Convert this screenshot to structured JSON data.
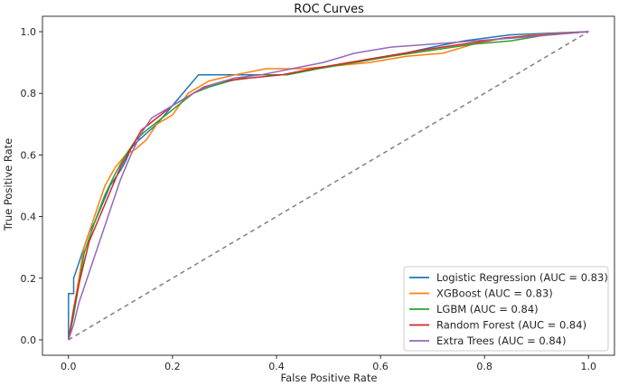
{
  "chart_data": {
    "type": "line",
    "title": "ROC Curves",
    "xlabel": "False Positive Rate",
    "ylabel": "True Positive Rate",
    "xlim": [
      -0.05,
      1.05
    ],
    "ylim": [
      -0.05,
      1.05
    ],
    "x_ticks": [
      "0.0",
      "0.2",
      "0.4",
      "0.6",
      "0.8",
      "1.0"
    ],
    "y_ticks": [
      "0.0",
      "0.2",
      "0.4",
      "0.6",
      "0.8",
      "1.0"
    ],
    "grid": false,
    "legend_position": "lower-right",
    "diagonal": {
      "x": [
        0,
        1
      ],
      "y": [
        0,
        1
      ],
      "style": "dashed",
      "color": "#808080"
    },
    "series": [
      {
        "name": "Logistic Regression (AUC = 0.83)",
        "color": "#1f77b4",
        "x": [
          0,
          0,
          0.01,
          0.01,
          0.02,
          0.03,
          0.04,
          0.05,
          0.06,
          0.07,
          0.08,
          0.1,
          0.11,
          0.12,
          0.13,
          0.15,
          0.17,
          0.19,
          0.21,
          0.23,
          0.25,
          0.27,
          0.3,
          0.35,
          0.42,
          0.48,
          0.55,
          0.62,
          0.7,
          0.76,
          0.85,
          1.0
        ],
        "y": [
          0,
          0.15,
          0.15,
          0.2,
          0.25,
          0.3,
          0.35,
          0.38,
          0.42,
          0.46,
          0.5,
          0.55,
          0.58,
          0.62,
          0.64,
          0.67,
          0.7,
          0.74,
          0.78,
          0.82,
          0.86,
          0.86,
          0.86,
          0.86,
          0.86,
          0.88,
          0.9,
          0.92,
          0.95,
          0.97,
          0.99,
          1.0
        ]
      },
      {
        "name": "XGBoost (AUC = 0.83)",
        "color": "#ff7f0e",
        "x": [
          0,
          0.01,
          0.02,
          0.03,
          0.05,
          0.07,
          0.09,
          0.11,
          0.13,
          0.15,
          0.17,
          0.2,
          0.23,
          0.27,
          0.32,
          0.38,
          0.45,
          0.52,
          0.58,
          0.65,
          0.72,
          0.78,
          0.84,
          0.9,
          1.0
        ],
        "y": [
          0,
          0.1,
          0.2,
          0.3,
          0.4,
          0.5,
          0.56,
          0.6,
          0.62,
          0.65,
          0.7,
          0.73,
          0.8,
          0.84,
          0.86,
          0.88,
          0.88,
          0.89,
          0.9,
          0.92,
          0.93,
          0.96,
          0.98,
          0.99,
          1.0
        ]
      },
      {
        "name": "LGBM (AUC = 0.84)",
        "color": "#2ca02c",
        "x": [
          0,
          0.01,
          0.02,
          0.03,
          0.05,
          0.07,
          0.09,
          0.11,
          0.13,
          0.15,
          0.18,
          0.21,
          0.24,
          0.27,
          0.31,
          0.36,
          0.42,
          0.48,
          0.55,
          0.62,
          0.7,
          0.78,
          0.85,
          0.92,
          1.0
        ],
        "y": [
          0,
          0.08,
          0.18,
          0.28,
          0.38,
          0.47,
          0.54,
          0.6,
          0.65,
          0.68,
          0.72,
          0.76,
          0.8,
          0.82,
          0.84,
          0.86,
          0.86,
          0.88,
          0.9,
          0.92,
          0.94,
          0.96,
          0.97,
          0.99,
          1.0
        ]
      },
      {
        "name": "Random Forest (AUC = 0.84)",
        "color": "#d62728",
        "x": [
          0,
          0.01,
          0.02,
          0.03,
          0.04,
          0.06,
          0.08,
          0.1,
          0.12,
          0.14,
          0.17,
          0.2,
          0.23,
          0.26,
          0.3,
          0.35,
          0.41,
          0.47,
          0.54,
          0.61,
          0.68,
          0.76,
          0.84,
          0.92,
          1.0
        ],
        "y": [
          0,
          0.1,
          0.18,
          0.25,
          0.32,
          0.4,
          0.48,
          0.56,
          0.62,
          0.68,
          0.72,
          0.76,
          0.79,
          0.82,
          0.84,
          0.85,
          0.86,
          0.88,
          0.9,
          0.92,
          0.94,
          0.96,
          0.98,
          0.99,
          1.0
        ]
      },
      {
        "name": "Extra Trees (AUC = 0.84)",
        "color": "#9467bd",
        "x": [
          0,
          0.01,
          0.02,
          0.04,
          0.06,
          0.08,
          0.1,
          0.12,
          0.14,
          0.16,
          0.19,
          0.22,
          0.25,
          0.28,
          0.32,
          0.37,
          0.43,
          0.49,
          0.55,
          0.62,
          0.7,
          0.78,
          0.86,
          0.93,
          1.0
        ],
        "y": [
          0,
          0.05,
          0.12,
          0.22,
          0.32,
          0.42,
          0.52,
          0.6,
          0.67,
          0.72,
          0.75,
          0.78,
          0.81,
          0.83,
          0.85,
          0.86,
          0.88,
          0.9,
          0.93,
          0.95,
          0.96,
          0.97,
          0.98,
          0.99,
          1.0
        ]
      }
    ]
  }
}
